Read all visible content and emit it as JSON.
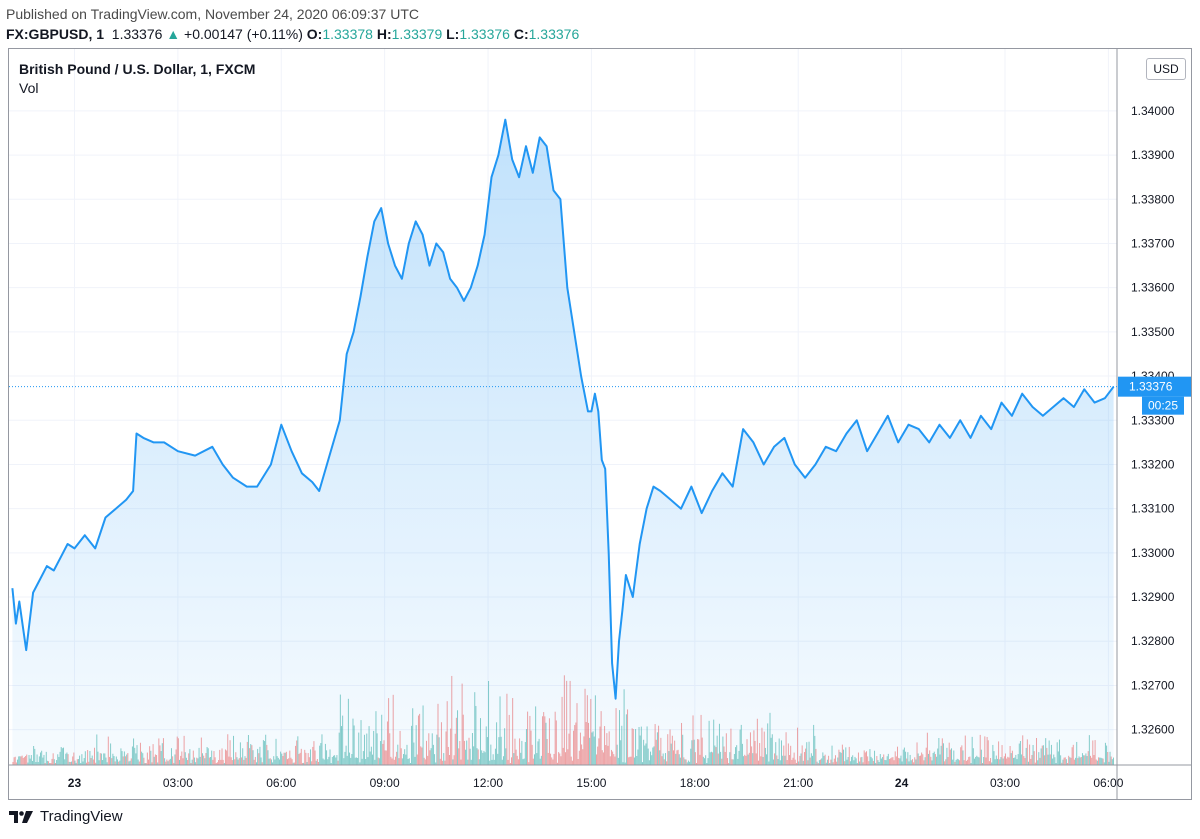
{
  "header": {
    "published": "Published on TradingView.com, November 24, 2020 06:09:37 UTC",
    "symbol": "FX:GBPUSD, 1",
    "last": "1.33376",
    "arrow": "▲",
    "change": "+0.00147 (+0.11%)",
    "o_label": "O:",
    "o_value": "1.33378",
    "h_label": "H:",
    "h_value": "1.33379",
    "l_label": "L:",
    "l_value": "1.33376",
    "c_label": "C:",
    "c_value": "1.33376"
  },
  "legend": {
    "title": "British Pound / U.S. Dollar, 1, FXCM",
    "volume": "Vol"
  },
  "price_axis": {
    "currency": "USD",
    "last_label": "1.33376",
    "countdown": "00:25"
  },
  "footer": {
    "brand": "TradingView",
    "icon": "tradingview-logo-icon"
  },
  "colors": {
    "line": "#2196f3",
    "area": "#2196f3",
    "vol_up": "#26a69a",
    "vol_down": "#ef5350",
    "price_tag": "#2196f3",
    "quote_green": "#26a69a"
  },
  "chart_data": {
    "type": "area",
    "title": "British Pound / U.S. Dollar, 1, FXCM",
    "xlabel": "",
    "ylabel": "",
    "ylim": [
      1.3252,
      1.3414
    ],
    "grid": true,
    "x_ticks": [
      "23",
      "03:00",
      "06:00",
      "09:00",
      "12:00",
      "15:00",
      "18:00",
      "21:00",
      "24",
      "03:00",
      "06:00"
    ],
    "x_tick_hours": [
      0,
      3,
      6,
      9,
      12,
      15,
      18,
      21,
      24,
      27,
      30
    ],
    "y_ticks": [
      1.326,
      1.327,
      1.328,
      1.329,
      1.33,
      1.331,
      1.332,
      1.333,
      1.334,
      1.335,
      1.336,
      1.337,
      1.338,
      1.339,
      1.34
    ],
    "y_tick_labels": [
      "1.32600",
      "1.32700",
      "1.32800",
      "1.32900",
      "1.33000",
      "1.33100",
      "1.33200",
      "1.33300",
      "1.33400",
      "1.33500",
      "1.33600",
      "1.33700",
      "1.33800",
      "1.33900",
      "1.34000"
    ],
    "hours_from_nov23_0000_utc": [
      -1.8,
      -1.7,
      -1.6,
      -1.4,
      -1.2,
      -1.0,
      -0.8,
      -0.6,
      -0.4,
      -0.2,
      0.0,
      0.3,
      0.6,
      0.9,
      1.2,
      1.5,
      1.7,
      1.8,
      2.0,
      2.3,
      2.6,
      3.0,
      3.5,
      4.0,
      4.3,
      4.6,
      5.0,
      5.3,
      5.7,
      6.0,
      6.3,
      6.6,
      6.9,
      7.1,
      7.4,
      7.7,
      7.9,
      8.1,
      8.3,
      8.5,
      8.7,
      8.9,
      9.1,
      9.3,
      9.5,
      9.7,
      9.9,
      10.1,
      10.3,
      10.5,
      10.7,
      10.9,
      11.1,
      11.3,
      11.5,
      11.7,
      11.9,
      12.1,
      12.3,
      12.5,
      12.7,
      12.9,
      13.1,
      13.3,
      13.5,
      13.7,
      13.9,
      14.1,
      14.3,
      14.5,
      14.7,
      14.9,
      15.0,
      15.1,
      15.2,
      15.3,
      15.4,
      15.5,
      15.6,
      15.7,
      15.8,
      15.9,
      16.0,
      16.2,
      16.4,
      16.6,
      16.8,
      17.0,
      17.3,
      17.6,
      17.9,
      18.2,
      18.5,
      18.8,
      19.1,
      19.4,
      19.7,
      20.0,
      20.3,
      20.6,
      20.9,
      21.2,
      21.5,
      21.8,
      22.1,
      22.4,
      22.7,
      23.0,
      23.3,
      23.6,
      23.9,
      24.2,
      24.5,
      24.8,
      25.1,
      25.4,
      25.7,
      26.0,
      26.3,
      26.6,
      26.9,
      27.2,
      27.5,
      27.8,
      28.1,
      28.4,
      28.7,
      29.0,
      29.3,
      29.6,
      29.9,
      30.15
    ],
    "price": [
      1.3292,
      1.3284,
      1.3289,
      1.3278,
      1.3291,
      1.3294,
      1.3297,
      1.3296,
      1.3299,
      1.3302,
      1.3301,
      1.3304,
      1.3301,
      1.3308,
      1.331,
      1.3312,
      1.3314,
      1.3327,
      1.3326,
      1.3325,
      1.3325,
      1.3323,
      1.3322,
      1.3324,
      1.332,
      1.3317,
      1.3315,
      1.3315,
      1.332,
      1.3329,
      1.3323,
      1.3318,
      1.3316,
      1.3314,
      1.3322,
      1.333,
      1.3345,
      1.335,
      1.3358,
      1.3367,
      1.3375,
      1.3378,
      1.337,
      1.3365,
      1.3362,
      1.337,
      1.3375,
      1.3372,
      1.3365,
      1.337,
      1.3368,
      1.3362,
      1.336,
      1.3357,
      1.336,
      1.3365,
      1.3372,
      1.3385,
      1.339,
      1.3398,
      1.3389,
      1.3385,
      1.3392,
      1.3386,
      1.3394,
      1.3392,
      1.3382,
      1.338,
      1.336,
      1.335,
      1.334,
      1.3332,
      1.3332,
      1.3336,
      1.3332,
      1.3321,
      1.3319,
      1.33,
      1.3275,
      1.3267,
      1.328,
      1.3287,
      1.3295,
      1.329,
      1.3302,
      1.331,
      1.3315,
      1.3314,
      1.3312,
      1.331,
      1.3315,
      1.3309,
      1.3314,
      1.3318,
      1.3315,
      1.3328,
      1.3325,
      1.332,
      1.3324,
      1.3326,
      1.332,
      1.3317,
      1.332,
      1.3324,
      1.3323,
      1.3327,
      1.333,
      1.3323,
      1.3327,
      1.3331,
      1.3325,
      1.3329,
      1.3328,
      1.3325,
      1.3329,
      1.3326,
      1.333,
      1.3326,
      1.3331,
      1.3328,
      1.3334,
      1.3331,
      1.3336,
      1.3333,
      1.3331,
      1.3333,
      1.3335,
      1.3333,
      1.3337,
      1.3334,
      1.3335,
      1.33376
    ],
    "last_price": 1.33376,
    "series": [
      {
        "values_key": "price"
      },
      {
        "values_key": "volume"
      }
    ]
  }
}
